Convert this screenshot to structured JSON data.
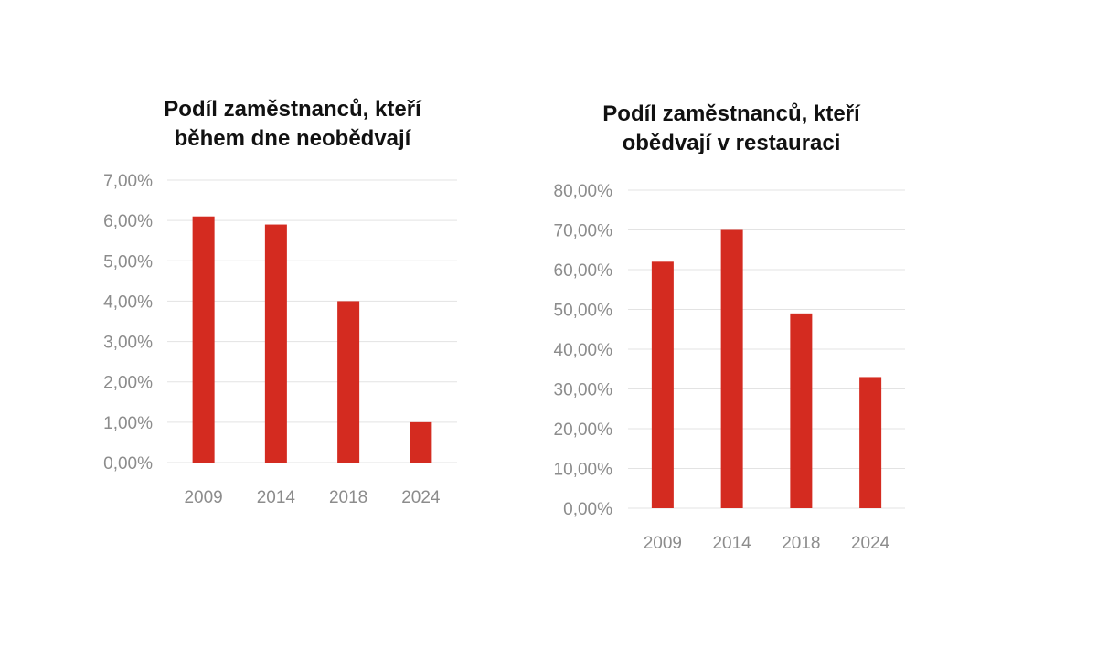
{
  "chart_data": [
    {
      "type": "bar",
      "title_lines": [
        "Podíl zaměstnanců, kteří",
        "během dne neobědvají"
      ],
      "categories": [
        "2009",
        "2014",
        "2018",
        "2024"
      ],
      "values": [
        6.1,
        5.9,
        4.0,
        1.0
      ],
      "ylim": [
        0,
        7
      ],
      "yticks": [
        "0,00%",
        "1,00%",
        "2,00%",
        "3,00%",
        "4,00%",
        "5,00%",
        "6,00%",
        "7,00%"
      ],
      "value_unit": "%",
      "xlabel": "",
      "ylabel": "",
      "grid": true,
      "legend": "none",
      "bar_color": "#d42b20"
    },
    {
      "type": "bar",
      "title_lines": [
        "Podíl zaměstnanců, kteří",
        "obědvají v restauraci"
      ],
      "categories": [
        "2009",
        "2014",
        "2018",
        "2024"
      ],
      "values": [
        62,
        70,
        49,
        33
      ],
      "ylim": [
        0,
        80
      ],
      "yticks": [
        "0,00%",
        "10,00%",
        "20,00%",
        "30,00%",
        "40,00%",
        "50,00%",
        "60,00%",
        "70,00%",
        "80,00%"
      ],
      "value_unit": "%",
      "xlabel": "",
      "ylabel": "",
      "grid": true,
      "legend": "none",
      "bar_color": "#d42b20"
    }
  ]
}
